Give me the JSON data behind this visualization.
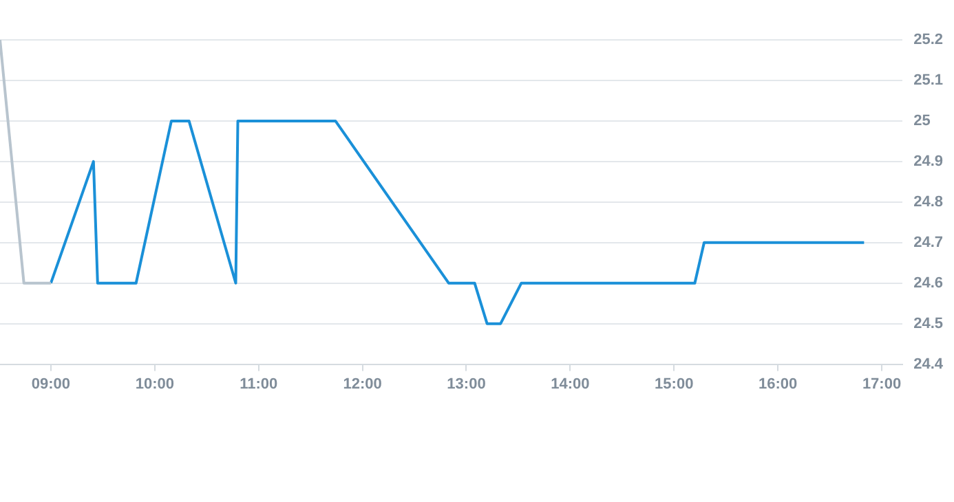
{
  "chart_data": {
    "type": "line",
    "marker": "none",
    "line_style": "solid",
    "grid": "y",
    "legend": false,
    "xlim": [
      8.51,
      17.2
    ],
    "ylim": [
      24.4,
      25.2
    ],
    "xticks": [
      {
        "value": 9,
        "label": "09:00"
      },
      {
        "value": 10,
        "label": "10:00"
      },
      {
        "value": 11,
        "label": "11:00"
      },
      {
        "value": 12,
        "label": "12:00"
      },
      {
        "value": 13,
        "label": "13:00"
      },
      {
        "value": 14,
        "label": "14:00"
      },
      {
        "value": 15,
        "label": "15:00"
      },
      {
        "value": 16,
        "label": "16:00"
      },
      {
        "value": 17,
        "label": "17:00"
      }
    ],
    "yticks": [
      24.4,
      24.5,
      24.6,
      24.7,
      24.8,
      24.9,
      25,
      25.1,
      25.2
    ],
    "series": [
      {
        "color": "#b8c4ce",
        "x": [
          8.51,
          8.74,
          9.0
        ],
        "values": [
          25.2,
          24.6,
          24.6
        ]
      },
      {
        "color": "#1a90d8",
        "x": [
          9.0,
          9.41,
          9.45,
          9.82,
          10.16,
          10.33,
          10.78,
          10.8,
          11.74,
          12.83,
          13.08,
          13.2,
          13.33,
          13.53,
          15.2,
          15.29,
          16.83
        ],
        "values": [
          24.6,
          24.9,
          24.6,
          24.6,
          25.0,
          25.0,
          24.6,
          25.0,
          25.0,
          24.6,
          24.6,
          24.5,
          24.5,
          24.6,
          24.6,
          24.7,
          24.7
        ]
      }
    ]
  }
}
